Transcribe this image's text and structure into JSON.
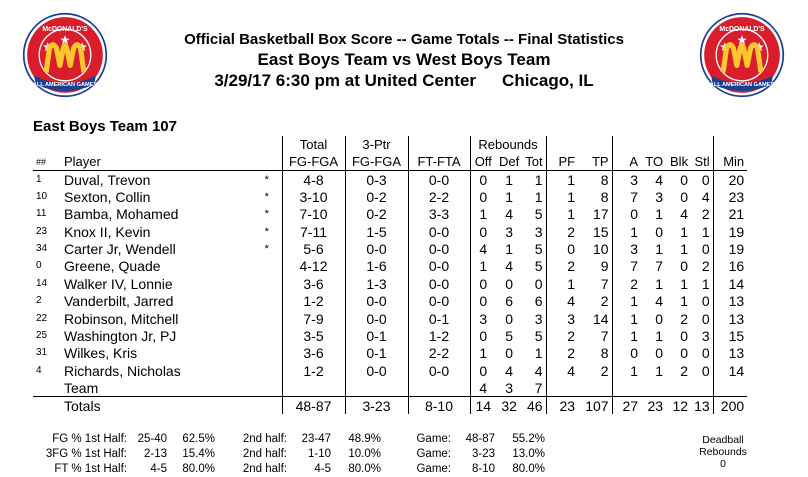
{
  "header": {
    "line1": "Official Basketball Box Score -- Game Totals -- Final Statistics",
    "line2": "East Boys Team vs West Boys Team",
    "line3_date": "3/29/17 6:30 pm at United Center",
    "line3_city": "Chicago, IL"
  },
  "logo": {
    "top_text": "McDONALD'S",
    "bottom_text": "ALL AMERICAN GAMES",
    "colors": {
      "ring": "#d81e2c",
      "arch": "#ffc72c",
      "stars": "#ffffff",
      "ribbon": "#1c3f94"
    }
  },
  "team_title": "East Boys Team 107",
  "columns": {
    "group_total": "Total",
    "group_3ptr": "3-Ptr",
    "group_rebounds": "Rebounds",
    "num": "##",
    "player": "Player",
    "fg": "FG-FGA",
    "three": "FG-FGA",
    "ft": "FT-FTA",
    "off": "Off",
    "def": "Def",
    "tot": "Tot",
    "pf": "PF",
    "tp": "TP",
    "a": "A",
    "to": "TO",
    "blk": "Blk",
    "stl": "Stl",
    "min": "Min"
  },
  "players": [
    {
      "num": "1",
      "name": "Duval, Trevon",
      "starter": "*",
      "fg": "4-8",
      "three": "0-3",
      "ft": "0-0",
      "off": "0",
      "def": "1",
      "tot": "1",
      "pf": "1",
      "tp": "8",
      "a": "3",
      "to": "4",
      "blk": "0",
      "stl": "0",
      "min": "20"
    },
    {
      "num": "10",
      "name": "Sexton, Collin",
      "starter": "*",
      "fg": "3-10",
      "three": "0-2",
      "ft": "2-2",
      "off": "0",
      "def": "1",
      "tot": "1",
      "pf": "1",
      "tp": "8",
      "a": "7",
      "to": "3",
      "blk": "0",
      "stl": "4",
      "min": "23"
    },
    {
      "num": "11",
      "name": "Bamba, Mohamed",
      "starter": "*",
      "fg": "7-10",
      "three": "0-2",
      "ft": "3-3",
      "off": "1",
      "def": "4",
      "tot": "5",
      "pf": "1",
      "tp": "17",
      "a": "0",
      "to": "1",
      "blk": "4",
      "stl": "2",
      "min": "21"
    },
    {
      "num": "23",
      "name": "Knox II, Kevin",
      "starter": "*",
      "fg": "7-11",
      "three": "1-5",
      "ft": "0-0",
      "off": "0",
      "def": "3",
      "tot": "3",
      "pf": "2",
      "tp": "15",
      "a": "1",
      "to": "0",
      "blk": "1",
      "stl": "1",
      "min": "19"
    },
    {
      "num": "34",
      "name": "Carter Jr, Wendell",
      "starter": "*",
      "fg": "5-6",
      "three": "0-0",
      "ft": "0-0",
      "off": "4",
      "def": "1",
      "tot": "5",
      "pf": "0",
      "tp": "10",
      "a": "3",
      "to": "1",
      "blk": "1",
      "stl": "0",
      "min": "19"
    },
    {
      "num": "0",
      "name": "Greene, Quade",
      "starter": "",
      "fg": "4-12",
      "three": "1-6",
      "ft": "0-0",
      "off": "1",
      "def": "4",
      "tot": "5",
      "pf": "2",
      "tp": "9",
      "a": "7",
      "to": "7",
      "blk": "0",
      "stl": "2",
      "min": "16"
    },
    {
      "num": "14",
      "name": "Walker IV, Lonnie",
      "starter": "",
      "fg": "3-6",
      "three": "1-3",
      "ft": "0-0",
      "off": "0",
      "def": "0",
      "tot": "0",
      "pf": "1",
      "tp": "7",
      "a": "2",
      "to": "1",
      "blk": "1",
      "stl": "1",
      "min": "14"
    },
    {
      "num": "2",
      "name": "Vanderbilt, Jarred",
      "starter": "",
      "fg": "1-2",
      "three": "0-0",
      "ft": "0-0",
      "off": "0",
      "def": "6",
      "tot": "6",
      "pf": "4",
      "tp": "2",
      "a": "1",
      "to": "4",
      "blk": "1",
      "stl": "0",
      "min": "13"
    },
    {
      "num": "22",
      "name": "Robinson, Mitchell",
      "starter": "",
      "fg": "7-9",
      "three": "0-0",
      "ft": "0-1",
      "off": "3",
      "def": "0",
      "tot": "3",
      "pf": "3",
      "tp": "14",
      "a": "1",
      "to": "0",
      "blk": "2",
      "stl": "0",
      "min": "13"
    },
    {
      "num": "25",
      "name": "Washington Jr, PJ",
      "starter": "",
      "fg": "3-5",
      "three": "0-1",
      "ft": "1-2",
      "off": "0",
      "def": "5",
      "tot": "5",
      "pf": "2",
      "tp": "7",
      "a": "1",
      "to": "1",
      "blk": "0",
      "stl": "3",
      "min": "15"
    },
    {
      "num": "31",
      "name": "Wilkes, Kris",
      "starter": "",
      "fg": "3-6",
      "three": "0-1",
      "ft": "2-2",
      "off": "1",
      "def": "0",
      "tot": "1",
      "pf": "2",
      "tp": "8",
      "a": "0",
      "to": "0",
      "blk": "0",
      "stl": "0",
      "min": "13"
    },
    {
      "num": "4",
      "name": "Richards, Nicholas",
      "starter": "",
      "fg": "1-2",
      "three": "0-0",
      "ft": "0-0",
      "off": "0",
      "def": "4",
      "tot": "4",
      "pf": "4",
      "tp": "2",
      "a": "1",
      "to": "1",
      "blk": "2",
      "stl": "0",
      "min": "14"
    }
  ],
  "team_row": {
    "name": "Team",
    "off": "4",
    "def": "3",
    "tot": "7"
  },
  "totals": {
    "name": "Totals",
    "fg": "48-87",
    "three": "3-23",
    "ft": "8-10",
    "off": "14",
    "def": "32",
    "tot": "46",
    "pf": "23",
    "tp": "107",
    "a": "27",
    "to": "23",
    "blk": "12",
    "stl": "13",
    "min": "200"
  },
  "shooting": [
    {
      "label": "FG % 1st Half:",
      "h1": "25-40",
      "p1": "62.5%",
      "label2": "2nd half:",
      "h2": "23-47",
      "p2": "48.9%",
      "label3": "Game:",
      "g": "48-87",
      "pg": "55.2%"
    },
    {
      "label": "3FG % 1st Half:",
      "h1": "2-13",
      "p1": "15.4%",
      "label2": "2nd half:",
      "h2": "1-10",
      "p2": "10.0%",
      "label3": "Game:",
      "g": "3-23",
      "pg": "13.0%"
    },
    {
      "label": "FT % 1st Half:",
      "h1": "4-5",
      "p1": "80.0%",
      "label2": "2nd half:",
      "h2": "4-5",
      "p2": "80.0%",
      "label3": "Game:",
      "g": "8-10",
      "pg": "80.0%"
    }
  ],
  "deadball": {
    "line1": "Deadball",
    "line2": "Rebounds",
    "value": "0"
  }
}
